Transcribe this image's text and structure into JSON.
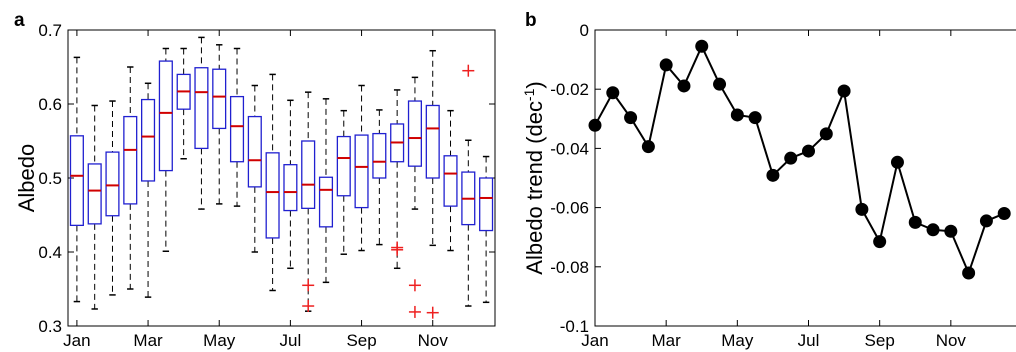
{
  "panels": {
    "a": "a",
    "b": "b"
  },
  "chart_data": [
    {
      "type": "box",
      "ylabel": "Albedo",
      "ylim": [
        0.3,
        0.7
      ],
      "yticks": [
        "0.3",
        "0.4",
        "0.5",
        "0.6",
        "0.7"
      ],
      "xticks": [
        "Jan",
        "Mar",
        "May",
        "Jul",
        "Sep",
        "Nov"
      ],
      "box_color": "#2020d0",
      "median_color": "#d00000",
      "outlier_color": "#ee2020",
      "boxes": [
        {
          "low": 0.333,
          "q1": 0.436,
          "med": 0.503,
          "q3": 0.557,
          "high": 0.663
        },
        {
          "low": 0.323,
          "q1": 0.438,
          "med": 0.483,
          "q3": 0.519,
          "high": 0.598
        },
        {
          "low": 0.342,
          "q1": 0.449,
          "med": 0.49,
          "q3": 0.535,
          "high": 0.604
        },
        {
          "low": 0.35,
          "q1": 0.465,
          "med": 0.538,
          "q3": 0.583,
          "high": 0.65
        },
        {
          "low": 0.339,
          "q1": 0.496,
          "med": 0.556,
          "q3": 0.606,
          "high": 0.628
        },
        {
          "low": 0.401,
          "q1": 0.51,
          "med": 0.588,
          "q3": 0.658,
          "high": 0.675
        },
        {
          "low": 0.526,
          "q1": 0.593,
          "med": 0.617,
          "q3": 0.64,
          "high": 0.675
        },
        {
          "low": 0.458,
          "q1": 0.54,
          "med": 0.616,
          "q3": 0.649,
          "high": 0.69
        },
        {
          "low": 0.465,
          "q1": 0.567,
          "med": 0.61,
          "q3": 0.647,
          "high": 0.68
        },
        {
          "low": 0.462,
          "q1": 0.522,
          "med": 0.57,
          "q3": 0.61,
          "high": 0.675
        },
        {
          "low": 0.4,
          "q1": 0.488,
          "med": 0.524,
          "q3": 0.583,
          "high": 0.625
        },
        {
          "low": 0.348,
          "q1": 0.419,
          "med": 0.481,
          "q3": 0.534,
          "high": 0.64
        },
        {
          "low": 0.378,
          "q1": 0.456,
          "med": 0.481,
          "q3": 0.518,
          "high": 0.605
        },
        {
          "low": 0.32,
          "q1": 0.459,
          "med": 0.491,
          "q3": 0.55,
          "high": 0.616
        },
        {
          "low": 0.359,
          "q1": 0.434,
          "med": 0.484,
          "q3": 0.501,
          "high": 0.607
        },
        {
          "low": 0.397,
          "q1": 0.476,
          "med": 0.527,
          "q3": 0.556,
          "high": 0.591
        },
        {
          "low": 0.402,
          "q1": 0.46,
          "med": 0.515,
          "q3": 0.558,
          "high": 0.625
        },
        {
          "low": 0.41,
          "q1": 0.5,
          "med": 0.522,
          "q3": 0.56,
          "high": 0.592
        },
        {
          "low": 0.378,
          "q1": 0.522,
          "med": 0.548,
          "q3": 0.573,
          "high": 0.619
        },
        {
          "low": 0.458,
          "q1": 0.516,
          "med": 0.554,
          "q3": 0.604,
          "high": 0.636
        },
        {
          "low": 0.409,
          "q1": 0.5,
          "med": 0.567,
          "q3": 0.598,
          "high": 0.672
        },
        {
          "low": 0.402,
          "q1": 0.462,
          "med": 0.506,
          "q3": 0.53,
          "high": 0.591
        },
        {
          "low": 0.327,
          "q1": 0.437,
          "med": 0.472,
          "q3": 0.508,
          "high": 0.551
        },
        {
          "low": 0.332,
          "q1": 0.429,
          "med": 0.473,
          "q3": 0.5,
          "high": 0.529
        }
      ],
      "outliers": [
        {
          "box": 13,
          "y": 0.355
        },
        {
          "box": 13,
          "y": 0.327
        },
        {
          "box": 18,
          "y": 0.406
        },
        {
          "box": 18,
          "y": 0.403
        },
        {
          "box": 19,
          "y": 0.355
        },
        {
          "box": 19,
          "y": 0.319
        },
        {
          "box": 20,
          "y": 0.318
        },
        {
          "box": 22,
          "y": 0.645
        }
      ]
    },
    {
      "type": "line",
      "ylabel": "Albedo trend (dec",
      "ylabel_sup": "-1",
      "ylabel_close": ")",
      "ylim": [
        -0.1,
        0
      ],
      "yticks": [
        "-0.1",
        "-0.08",
        "-0.06",
        "-0.04",
        "-0.02",
        "0"
      ],
      "xticks": [
        "Jan",
        "Mar",
        "May",
        "Jul",
        "Sep",
        "Nov"
      ],
      "color": "#000000",
      "values": [
        -0.0322,
        -0.0212,
        -0.0296,
        -0.0394,
        -0.0118,
        -0.0189,
        -0.0055,
        -0.0183,
        -0.0287,
        -0.0296,
        -0.0491,
        -0.0433,
        -0.0409,
        -0.0351,
        -0.0206,
        -0.0606,
        -0.0715,
        -0.0447,
        -0.065,
        -0.0675,
        -0.068,
        -0.0821,
        -0.0645,
        -0.062
      ]
    }
  ]
}
